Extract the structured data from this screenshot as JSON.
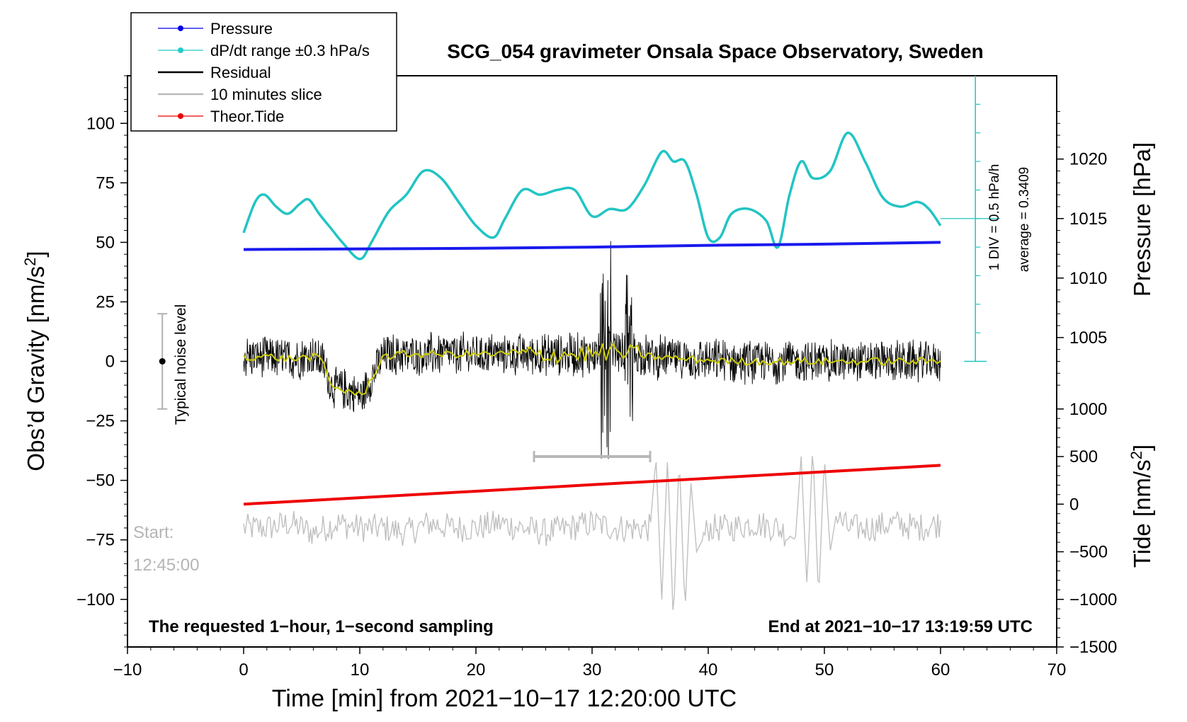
{
  "chart_data": {
    "type": "line",
    "title": "SCG_054 gravimeter Onsala Space Observatory, Sweden",
    "xlabel": "Time [min] from 2021−10−17 12:20:00 UTC",
    "xlim": [
      -10,
      70
    ],
    "xticks": [
      -10,
      0,
      10,
      20,
      30,
      40,
      50,
      60,
      70
    ],
    "xtick_labels": [
      "−10",
      "0",
      "10",
      "20",
      "30",
      "40",
      "50",
      "60",
      "70"
    ],
    "y_left": {
      "label_main": "Obs’d Gravity [nm/s",
      "label_sup": "2",
      "label_end": "]",
      "lim": [
        -120,
        120
      ],
      "ticks": [
        -100,
        -75,
        -50,
        -25,
        0,
        25,
        50,
        75,
        100
      ],
      "tick_labels": [
        "−100",
        "−75",
        "−50",
        "−25",
        "0",
        "25",
        "50",
        "75",
        "100"
      ]
    },
    "y_pressure": {
      "label": "Pressure [hPa]",
      "ticks": [
        1005,
        1010,
        1015,
        1020
      ],
      "tick_labels": [
        "1005",
        "1010",
        "1015",
        "1020"
      ],
      "gravity_at_1000": -15,
      "gravity_per_hpa": 5.0
    },
    "y_tide": {
      "label_main": "Tide [nm/s",
      "label_sup": "2",
      "label_end": "]",
      "ticks": [
        -1500,
        -1000,
        -500,
        0,
        500,
        1000
      ],
      "tick_labels": [
        "−1500",
        "−1000",
        "−500",
        "0",
        "500",
        "1000"
      ],
      "gravity_at_0": -60,
      "gravity_per_unit": 0.04
    },
    "legend": {
      "placement": "top-left",
      "entries": [
        {
          "label": "Pressure",
          "color": "#0000ee",
          "marker": true
        },
        {
          "label": "dP/dt range ±0.3 hPa/s",
          "color": "#22cccc",
          "marker": true
        },
        {
          "label": "Residual",
          "color": "#000000",
          "marker": false
        },
        {
          "label": "10 minutes slice",
          "color": "#bbbbbb",
          "marker": false
        },
        {
          "label": "Theor.Tide",
          "color": "#ee0000",
          "marker": true
        }
      ]
    },
    "series": [
      {
        "name": "Pressure",
        "axis": "pressure",
        "color": "#1a1aee",
        "x": [
          0,
          10,
          20,
          30,
          40,
          50,
          60
        ],
        "values": [
          1012.4,
          1012.45,
          1012.5,
          1012.6,
          1012.75,
          1012.85,
          1013.0
        ]
      },
      {
        "name": "dP/dt range",
        "axis": "left",
        "color": "#22c4c4",
        "x": [
          0,
          1,
          1.8,
          2.8,
          3.8,
          4.8,
          5.6,
          6.5,
          7.5,
          8.5,
          10,
          11,
          12.5,
          14,
          15.5,
          17,
          18.5,
          20,
          21.5,
          22.5,
          24,
          25.5,
          27,
          28.5,
          30,
          31.5,
          33,
          34.5,
          36,
          37,
          38,
          39,
          40,
          41,
          42,
          43.5,
          45,
          46,
          47,
          48,
          49,
          50.5,
          52,
          53.5,
          55,
          56.5,
          58,
          59,
          60
        ],
        "values": [
          54,
          67,
          70,
          65,
          62,
          66,
          68,
          62,
          56,
          50,
          43,
          50,
          63,
          70,
          80,
          77,
          67,
          57,
          52,
          60,
          72,
          70,
          72,
          72,
          61,
          64,
          64,
          74,
          88,
          84,
          84,
          70,
          52,
          52,
          62,
          64,
          59,
          48,
          70,
          84,
          77,
          80,
          96,
          84,
          69,
          65,
          67,
          64,
          57
        ]
      },
      {
        "name": "Residual",
        "axis": "left",
        "color": "#000000",
        "x": [
          0,
          2,
          4,
          6,
          6.8,
          7.5,
          8.5,
          9.5,
          10.2,
          11,
          12,
          14,
          17,
          20,
          23,
          26,
          29,
          30.5,
          31.2,
          32,
          33,
          34,
          35,
          38,
          42,
          46,
          50,
          54,
          57,
          60
        ],
        "values": [
          2,
          2,
          1,
          2,
          0,
          -10,
          -12,
          -13,
          -15,
          -7,
          2,
          3,
          3,
          3,
          3,
          3,
          3,
          3,
          4,
          4,
          3,
          3,
          2,
          1,
          0,
          0,
          0,
          0,
          0,
          0
        ]
      },
      {
        "name": "10 minutes slice",
        "axis": "left",
        "color": "#c0c0c0",
        "x": [
          0,
          2,
          4,
          6,
          8,
          10,
          12,
          14,
          16,
          18,
          20,
          22,
          24,
          26,
          28,
          30,
          32,
          34,
          35,
          35.5,
          36,
          36.5,
          37,
          37.5,
          38,
          38.5,
          39,
          40,
          42,
          44,
          46,
          47.5,
          48,
          48.5,
          49,
          49.5,
          50,
          50.5,
          51,
          52,
          54,
          56,
          58,
          60
        ],
        "values": [
          -70,
          -70,
          -68,
          -72,
          -68,
          -70,
          -70,
          -72,
          -68,
          -70,
          -70,
          -68,
          -70,
          -72,
          -70,
          -68,
          -70,
          -70,
          -70,
          -40,
          -100,
          -40,
          -110,
          -40,
          -105,
          -50,
          -80,
          -70,
          -70,
          -68,
          -70,
          -75,
          -40,
          -95,
          -35,
          -100,
          -40,
          -80,
          -65,
          -70,
          -70,
          -68,
          -70,
          -68
        ]
      },
      {
        "name": "Theor.Tide",
        "axis": "tide",
        "color": "#ee0000",
        "x": [
          0,
          10,
          20,
          30,
          40,
          50,
          60
        ],
        "values": [
          0,
          68,
          136,
          204,
          272,
          340,
          408
        ]
      }
    ],
    "noise_bar": {
      "label": "Typical noise level",
      "x": -7,
      "y": 0,
      "low": -20,
      "high": 20
    },
    "slice_bar": {
      "x_start": 25,
      "x_end": 35,
      "y": -40
    },
    "dp_scale": {
      "axis_x": 63,
      "label_1": "1 DIV = 0.5 hPa/h",
      "label_2": "average = 0.3409",
      "top": 120,
      "bottom": 0,
      "ticks": [
        12,
        24,
        36,
        48,
        60,
        72,
        84,
        96,
        108
      ],
      "reference_y": 60
    },
    "annotations": {
      "start_label": "Start:",
      "start_time": "12:45:00",
      "bottom_left": "The requested 1−hour, 1−second sampling",
      "bottom_right": "End at 2021−10−17 13:19:59 UTC"
    }
  }
}
